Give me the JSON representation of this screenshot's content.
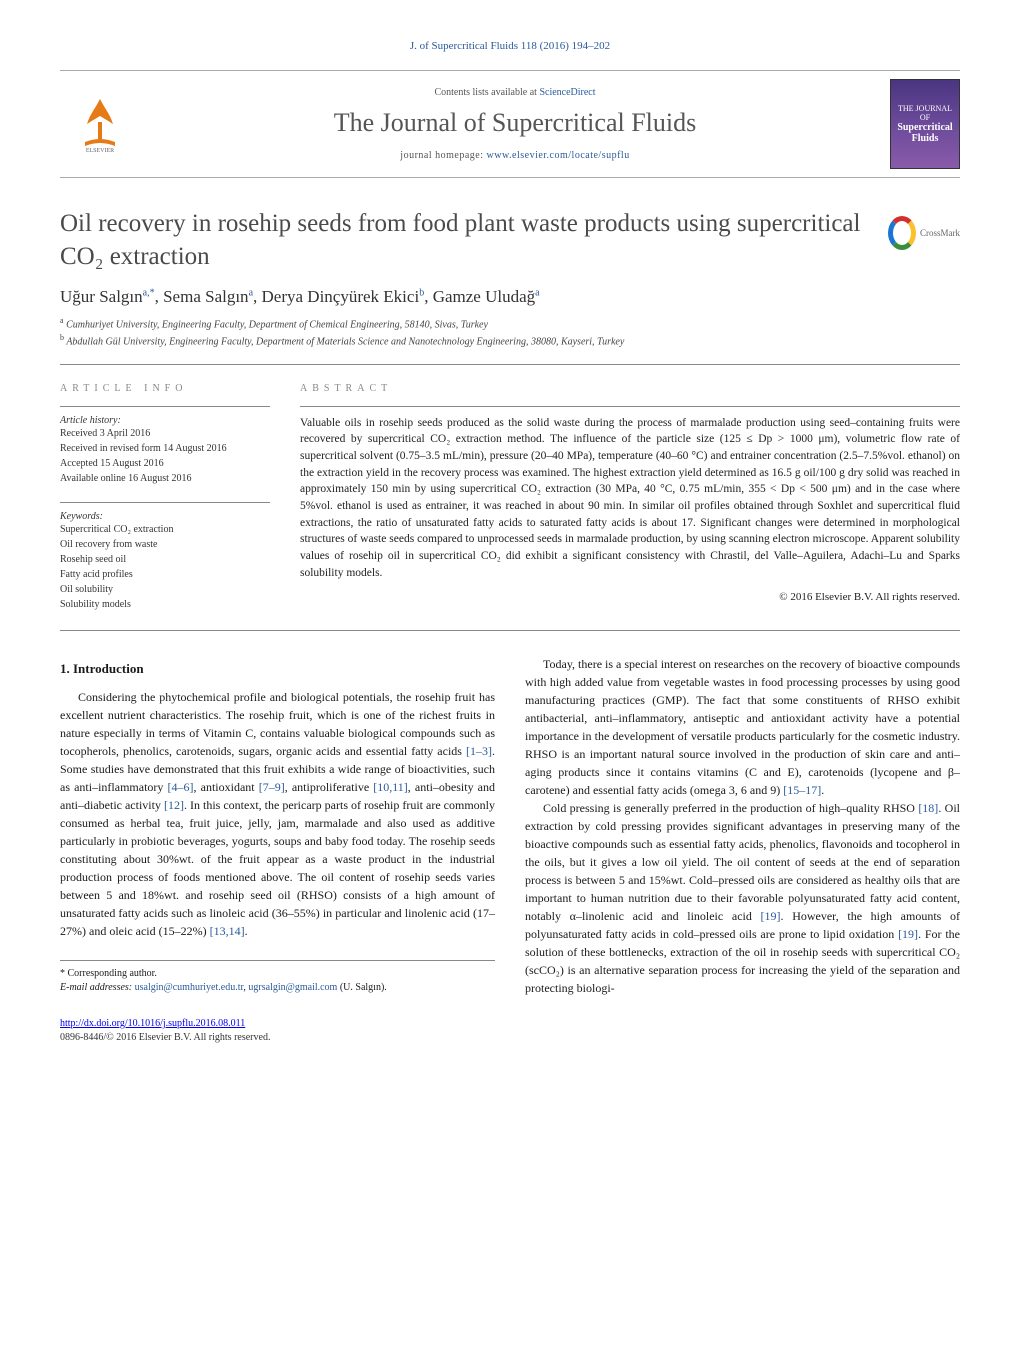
{
  "journal_ref": "J. of Supercritical Fluids 118 (2016) 194–202",
  "masthead": {
    "contents_prefix": "Contents lists available at ",
    "contents_link": "ScienceDirect",
    "journal_title": "The Journal of Supercritical Fluids",
    "homepage_prefix": "journal homepage: ",
    "homepage_link": "www.elsevier.com/locate/supflu",
    "cover_label_top": "THE JOURNAL OF",
    "cover_label_mid": "Supercritical",
    "cover_label_bot": "Fluids"
  },
  "article": {
    "title": "Oil recovery in rosehip seeds from food plant waste products using supercritical CO₂ extraction",
    "crossmark_label": "CrossMark",
    "authors_html": "Uğur Salgın<sup>a,*</sup>, Sema Salgın<sup>a</sup>, Derya Dinçyürek Ekici<sup>b</sup>, Gamze Uludağ<sup>a</sup>",
    "affiliations": [
      {
        "sup": "a",
        "text": "Cumhuriyet University, Engineering Faculty, Department of Chemical Engineering, 58140, Sivas, Turkey"
      },
      {
        "sup": "b",
        "text": "Abdullah Gül University, Engineering Faculty, Department of Materials Science and Nanotechnology Engineering, 38080, Kayseri, Turkey"
      }
    ]
  },
  "info": {
    "label_info": "ARTICLE INFO",
    "label_abstract": "ABSTRACT",
    "history_label": "Article history:",
    "history": [
      "Received 3 April 2016",
      "Received in revised form 14 August 2016",
      "Accepted 15 August 2016",
      "Available online 16 August 2016"
    ],
    "keywords_label": "Keywords:",
    "keywords": [
      "Supercritical CO₂ extraction",
      "Oil recovery from waste",
      "Rosehip seed oil",
      "Fatty acid profiles",
      "Oil solubility",
      "Solubility models"
    ]
  },
  "abstract": {
    "text": "Valuable oils in rosehip seeds produced as the solid waste during the process of marmalade production using seed–containing fruits were recovered by supercritical CO₂ extraction method. The influence of the particle size (125 ≤ Dp > 1000 μm), volumetric flow rate of supercritical solvent (0.75–3.5 mL/min), pressure (20–40 MPa), temperature (40–60 °C) and entrainer concentration (2.5–7.5%vol. ethanol) on the extraction yield in the recovery process was examined. The highest extraction yield determined as 16.5 g oil/100 g dry solid was reached in approximately 150 min by using supercritical CO₂ extraction (30 MPa, 40 °C, 0.75 mL/min, 355 < Dp < 500 μm) and in the case where 5%vol. ethanol is used as entrainer, it was reached in about 90 min. In similar oil profiles obtained through Soxhlet and supercritical fluid extractions, the ratio of unsaturated fatty acids to saturated fatty acids is about 17. Significant changes were determined in morphological structures of waste seeds compared to unprocessed seeds in marmalade production, by using scanning electron microscope. Apparent solubility values of rosehip oil in supercritical CO₂ did exhibit a significant consistency with Chrastil, del Valle–Aguilera, Adachi–Lu and Sparks solubility models.",
    "copyright": "© 2016 Elsevier B.V. All rights reserved."
  },
  "body": {
    "heading1": "1. Introduction",
    "p1": "Considering the phytochemical profile and biological potentials, the rosehip fruit has excellent nutrient characteristics. The rosehip fruit, which is one of the richest fruits in nature especially in terms of Vitamin C, contains valuable biological compounds such as tocopherols, phenolics, carotenoids, sugars, organic acids and essential fatty acids [1–3]. Some studies have demonstrated that this fruit exhibits a wide range of bioactivities, such as anti–inflammatory [4–6], antioxidant [7–9], antiproliferative [10,11], anti–obesity and anti–diabetic activity [12]. In this context, the pericarp parts of rosehip fruit are commonly consumed as herbal tea, fruit juice, jelly, jam, marmalade and also used as additive particularly in probiotic beverages, yogurts, soups and baby food today. The rosehip seeds constituting about 30%wt. of the fruit appear as a waste product in the industrial production process of foods mentioned above. The oil content of rosehip seeds varies between 5 and 18%wt. and rosehip seed oil (RHSO) consists of a high amount of unsaturated fatty acids such as linoleic acid (36–55%) in particular and linolenic acid (17–27%) and oleic acid (15–22%) [13,14].",
    "p2": "Today, there is a special interest on researches on the recovery of bioactive compounds with high added value from vegetable wastes in food processing processes by using good manufacturing practices (GMP). The fact that some constituents of RHSO exhibit antibacterial, anti–inflammatory, antiseptic and antioxidant activity have a potential importance in the development of versatile products particularly for the cosmetic industry. RHSO is an important natural source involved in the production of skin care and anti–aging products since it contains vitamins (C and E), carotenoids (lycopene and β–carotene) and essential fatty acids (omega 3, 6 and 9) [15–17].",
    "p3": "Cold pressing is generally preferred in the production of high–quality RHSO [18]. Oil extraction by cold pressing provides significant advantages in preserving many of the bioactive compounds such as essential fatty acids, phenolics, flavonoids and tocopherol in the oils, but it gives a low oil yield. The oil content of seeds at the end of separation process is between 5 and 15%wt. Cold–pressed oils are considered as healthy oils that are important to human nutrition due to their favorable polyunsaturated fatty acid content, notably α–linolenic acid and linoleic acid [19]. However, the high amounts of polyunsaturated fatty acids in cold–pressed oils are prone to lipid oxidation [19]. For the solution of these bottlenecks, extraction of the oil in rosehip seeds with supercritical CO₂ (scCO₂) is an alternative separation process for increasing the yield of the separation and protecting biologi-"
  },
  "footnote": {
    "corresp": "* Corresponding author.",
    "email_label": "E-mail addresses: ",
    "email1": "usalgin@cumhuriyet.edu.tr",
    "email2": "ugrsalgin@gmail.com",
    "email_suffix": " (U. Salgın)."
  },
  "doi": {
    "url": "http://dx.doi.org/10.1016/j.supflu.2016.08.011",
    "issn_cpr": "0896-8446/© 2016 Elsevier B.V. All rights reserved."
  },
  "colors": {
    "link": "#2a5a9a",
    "text": "#1a1a1a",
    "muted": "#888888"
  }
}
